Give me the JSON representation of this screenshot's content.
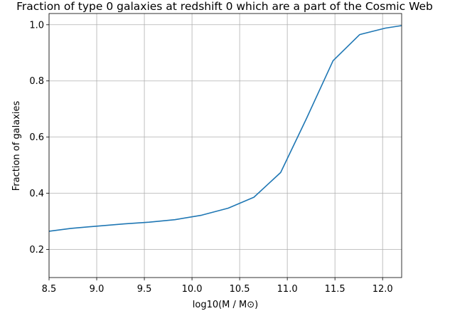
{
  "chart_data": {
    "type": "line",
    "title": "Fraction of type 0 galaxies at redshift 0 which are a part of the Cosmic Web",
    "xlabel": "log10(M / M⊙)",
    "ylabel": "Fraction of galaxies",
    "xlim": [
      8.5,
      12.2
    ],
    "ylim": [
      0.1,
      1.04
    ],
    "xticks": [
      8.5,
      9.0,
      9.5,
      10.0,
      10.5,
      11.0,
      11.5,
      12.0
    ],
    "xtick_labels": [
      "8.5",
      "9.0",
      "9.5",
      "10.0",
      "10.5",
      "11.0",
      "11.5",
      "12.0"
    ],
    "yticks": [
      0.2,
      0.4,
      0.6,
      0.8,
      1.0
    ],
    "ytick_labels": [
      "0.2",
      "0.4",
      "0.6",
      "0.8",
      "1.0"
    ],
    "grid": true,
    "series": [
      {
        "color": "#1f77b4",
        "x": [
          8.5,
          8.73,
          9.0,
          9.29,
          9.55,
          9.82,
          10.1,
          10.38,
          10.65,
          10.93,
          11.2,
          11.48,
          11.76,
          12.03,
          12.2
        ],
        "y": [
          0.265,
          0.275,
          0.283,
          0.291,
          0.297,
          0.306,
          0.322,
          0.347,
          0.386,
          0.474,
          0.665,
          0.872,
          0.965,
          0.988,
          0.997
        ]
      }
    ]
  }
}
